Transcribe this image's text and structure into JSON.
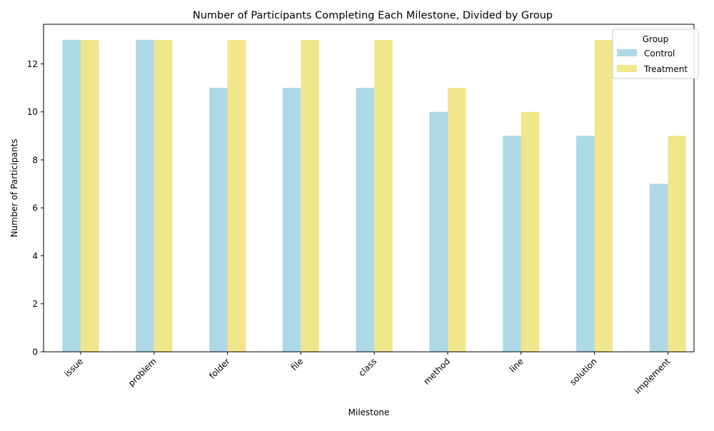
{
  "chart_data": {
    "type": "bar",
    "title": "Number of Participants Completing Each Milestone, Divided by Group",
    "xlabel": "Milestone",
    "ylabel": "Number of Participants",
    "categories": [
      "issue",
      "problem",
      "folder",
      "file",
      "class",
      "method",
      "line",
      "solution",
      "implement"
    ],
    "series": [
      {
        "name": "Control",
        "color": "#add8e6",
        "values": [
          13,
          13,
          11,
          11,
          11,
          10,
          9,
          9,
          7
        ]
      },
      {
        "name": "Treatment",
        "color": "#f0e68c",
        "values": [
          13,
          13,
          13,
          13,
          13,
          11,
          10,
          13,
          9
        ]
      }
    ],
    "ylim": [
      0,
      13.65
    ],
    "yticks": [
      0,
      2,
      4,
      6,
      8,
      10,
      12
    ],
    "legend": {
      "title": "Group",
      "placement": "top-right"
    },
    "grid": false,
    "xtick_rotation": 45
  }
}
